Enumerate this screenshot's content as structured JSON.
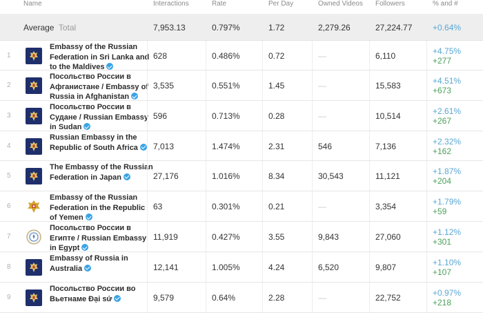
{
  "header": {
    "name": "Name",
    "interactions": "Interactions",
    "rate": "Rate",
    "per_day": "Per Day",
    "owned_videos": "Owned Videos",
    "followers": "Followers",
    "growth": "% and #"
  },
  "average": {
    "label": "Average",
    "sub": "Total",
    "interactions": "7,953.13",
    "rate": "0.797%",
    "per_day": "1.72",
    "owned_videos": "2,279.26",
    "followers": "27,224.77",
    "growth_pct": "+0.64%"
  },
  "rows": [
    {
      "rank": "1",
      "name": "Embassy of the Russian Federation in Sri Lanka and to the Maldives",
      "interactions": "628",
      "rate": "0.486%",
      "per_day": "0.72",
      "owned_videos": "—",
      "followers": "6,110",
      "growth_pct": "+4.75%",
      "growth_abs": "+277",
      "flag": "ru"
    },
    {
      "rank": "2",
      "name": "Посольство России в Афганистане / Embassy of Russia in Afghanistan",
      "interactions": "3,535",
      "rate": "0.551%",
      "per_day": "1.45",
      "owned_videos": "—",
      "followers": "15,583",
      "growth_pct": "+4.51%",
      "growth_abs": "+673",
      "flag": "ru"
    },
    {
      "rank": "3",
      "name": "Посольство России в Судане / Russian Embassy in Sudan",
      "interactions": "596",
      "rate": "0.713%",
      "per_day": "0.28",
      "owned_videos": "—",
      "followers": "10,514",
      "growth_pct": "+2.61%",
      "growth_abs": "+267",
      "flag": "ru"
    },
    {
      "rank": "4",
      "name": "Russian Embassy in the Republic of South Africa",
      "interactions": "7,013",
      "rate": "1.474%",
      "per_day": "2.31",
      "owned_videos": "546",
      "followers": "7,136",
      "growth_pct": "+2.32%",
      "growth_abs": "+162",
      "flag": "ru"
    },
    {
      "rank": "5",
      "name": "The Embassy of the Russian Federation in Japan",
      "interactions": "27,176",
      "rate": "1.016%",
      "per_day": "8.34",
      "owned_videos": "30,543",
      "followers": "11,121",
      "growth_pct": "+1.87%",
      "growth_abs": "+204",
      "flag": "ru"
    },
    {
      "rank": "6",
      "name": "Embassy of the Russian Federation in the Republic of Yemen",
      "interactions": "63",
      "rate": "0.301%",
      "per_day": "0.21",
      "owned_videos": "—",
      "followers": "3,354",
      "growth_pct": "+1.79%",
      "growth_abs": "+59",
      "flag": "emblem"
    },
    {
      "rank": "7",
      "name": "Посольство России в Египте / Russian Embassy in Egypt",
      "interactions": "11,919",
      "rate": "0.427%",
      "per_day": "3.55",
      "owned_videos": "9,843",
      "followers": "27,060",
      "growth_pct": "+1.12%",
      "growth_abs": "+301",
      "flag": "seal"
    },
    {
      "rank": "8",
      "name": "Embassy of Russia in Australia",
      "interactions": "12,141",
      "rate": "1.005%",
      "per_day": "4.24",
      "owned_videos": "6,520",
      "followers": "9,807",
      "growth_pct": "+1.10%",
      "growth_abs": "+107",
      "flag": "ru"
    },
    {
      "rank": "9",
      "name": "Посольство России во Вьетнаме Đại sứ",
      "interactions": "9,579",
      "rate": "0.64%",
      "per_day": "2.28",
      "owned_videos": "—",
      "followers": "22,752",
      "growth_pct": "+0.97%",
      "growth_abs": "+218",
      "flag": "ru"
    }
  ]
}
